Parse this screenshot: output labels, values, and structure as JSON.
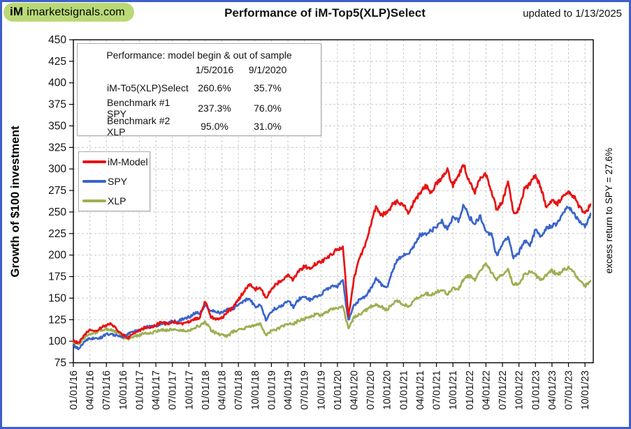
{
  "header": {
    "logo_im": "iM",
    "logo_domain": "imarketsignals.com",
    "title": "Performance of iM-Top5(XLP)Select",
    "updated": "updated to  1/13/2025"
  },
  "perf_table": {
    "title": "Performance:  model begin  &  out of sample",
    "columns": [
      "1/5/2016",
      "9/1/2020"
    ],
    "rows": [
      {
        "name": "iM-To5(XLP)Select",
        "begin": "260.6%",
        "oos": "35.7%"
      },
      {
        "name": "Benchmark #1 SPY",
        "begin": "237.3%",
        "oos": "76.0%"
      },
      {
        "name": "Benchmark #2 XLP",
        "begin": "95.0%",
        "oos": "31.0%"
      }
    ]
  },
  "y_axis_label": "Growth of $100 investment",
  "right_label": "excess return to SPY = 27.6%",
  "chart_data": {
    "type": "line",
    "title": "Performance of iM-Top5(XLP)Select",
    "ylabel": "Growth of $100 investment",
    "ylim": [
      75,
      450
    ],
    "yticks": [
      75,
      100,
      125,
      150,
      175,
      200,
      225,
      250,
      275,
      300,
      325,
      350,
      375,
      400,
      425,
      450
    ],
    "grid": "dashed",
    "legend_position": "upper-left box",
    "x_tick_labels": [
      "01/01/16",
      "04/01/16",
      "07/01/16",
      "10/01/16",
      "01/01/17",
      "04/01/17",
      "07/01/17",
      "10/01/17",
      "01/01/18",
      "04/01/18",
      "07/01/18",
      "10/01/18",
      "01/01/19",
      "04/01/19",
      "07/01/19",
      "10/01/19",
      "01/01/20",
      "04/01/20",
      "07/01/20",
      "10/01/20",
      "01/01/21",
      "04/01/21",
      "07/01/21",
      "10/01/21",
      "01/01/22",
      "04/01/22",
      "07/01/22",
      "10/01/22",
      "01/01/23",
      "04/01/23",
      "07/01/23",
      "10/01/23"
    ],
    "x_months": [
      "2016-01",
      "2016-02",
      "2016-03",
      "2016-04",
      "2016-05",
      "2016-06",
      "2016-07",
      "2016-08",
      "2016-09",
      "2016-10",
      "2016-11",
      "2016-12",
      "2017-01",
      "2017-02",
      "2017-03",
      "2017-04",
      "2017-05",
      "2017-06",
      "2017-07",
      "2017-08",
      "2017-09",
      "2017-10",
      "2017-11",
      "2017-12",
      "2018-01",
      "2018-02",
      "2018-03",
      "2018-04",
      "2018-05",
      "2018-06",
      "2018-07",
      "2018-08",
      "2018-09",
      "2018-10",
      "2018-11",
      "2018-12",
      "2019-01",
      "2019-02",
      "2019-03",
      "2019-04",
      "2019-05",
      "2019-06",
      "2019-07",
      "2019-08",
      "2019-09",
      "2019-10",
      "2019-11",
      "2019-12",
      "2020-01",
      "2020-02",
      "2020-03",
      "2020-04",
      "2020-05",
      "2020-06",
      "2020-07",
      "2020-08",
      "2020-09",
      "2020-10",
      "2020-11",
      "2020-12",
      "2021-01",
      "2021-02",
      "2021-03",
      "2021-04",
      "2021-05",
      "2021-06",
      "2021-07",
      "2021-08",
      "2021-09",
      "2021-10",
      "2021-11",
      "2021-12",
      "2022-01",
      "2022-02",
      "2022-03",
      "2022-04",
      "2022-05",
      "2022-06",
      "2022-07",
      "2022-08",
      "2022-09",
      "2022-10",
      "2022-11",
      "2022-12",
      "2023-01",
      "2023-02",
      "2023-03",
      "2023-04",
      "2023-05",
      "2023-06",
      "2023-07",
      "2023-08",
      "2023-09",
      "2023-10",
      "2023-11"
    ],
    "series": [
      {
        "name": "XLP",
        "color": "#9EAF52",
        "values": [
          98,
          97,
          104,
          108,
          110,
          113,
          114,
          113,
          110,
          104,
          103,
          105,
          107,
          110,
          109,
          111,
          113,
          113,
          114,
          113,
          112,
          112,
          116,
          118,
          122,
          113,
          109,
          107,
          106,
          111,
          113,
          115,
          117,
          118,
          121,
          107,
          112,
          114,
          117,
          120,
          120,
          124,
          126,
          128,
          131,
          130,
          134,
          137,
          138,
          140,
          114,
          128,
          131,
          135,
          140,
          143,
          140,
          136,
          144,
          147,
          143,
          140,
          148,
          152,
          156,
          153,
          157,
          160,
          155,
          162,
          161,
          172,
          176,
          172,
          181,
          190,
          180,
          172,
          178,
          183,
          165,
          167,
          178,
          181,
          177,
          171,
          176,
          182,
          177,
          182,
          186,
          180,
          170,
          164,
          170
        ]
      },
      {
        "name": "SPY",
        "color": "#3A64CB",
        "values": [
          95,
          91,
          100,
          103,
          104,
          104,
          108,
          108,
          107,
          105,
          109,
          111,
          113,
          117,
          117,
          118,
          120,
          121,
          123,
          123,
          126,
          128,
          132,
          133,
          141,
          136,
          133,
          134,
          137,
          138,
          143,
          147,
          150,
          140,
          143,
          125,
          135,
          139,
          142,
          148,
          140,
          149,
          151,
          148,
          151,
          154,
          160,
          164,
          164,
          170,
          124,
          141,
          148,
          151,
          160,
          172,
          166,
          162,
          182,
          196,
          200,
          203,
          211,
          223,
          225,
          228,
          233,
          239,
          230,
          243,
          240,
          259,
          244,
          237,
          246,
          226,
          224,
          198,
          212,
          222,
          197,
          203,
          217,
          212,
          229,
          222,
          231,
          234,
          236,
          249,
          256,
          247,
          238,
          233,
          248
        ]
      },
      {
        "name": "iM-Model",
        "color": "#E81212",
        "values": [
          100,
          98,
          107,
          113,
          112,
          115,
          119,
          120,
          113,
          107,
          104,
          109,
          112,
          116,
          115,
          119,
          122,
          120,
          122,
          121,
          120,
          122,
          125,
          128,
          147,
          128,
          126,
          127,
          134,
          139,
          148,
          158,
          166,
          160,
          163,
          150,
          161,
          167,
          171,
          177,
          171,
          181,
          187,
          184,
          190,
          192,
          196,
          201,
          207,
          210,
          128,
          172,
          196,
          210,
          235,
          255,
          246,
          250,
          258,
          263,
          258,
          248,
          263,
          272,
          281,
          273,
          283,
          290,
          298,
          281,
          293,
          304,
          285,
          272,
          290,
          293,
          275,
          252,
          262,
          285,
          248,
          253,
          276,
          283,
          292,
          278,
          255,
          262,
          260,
          268,
          274,
          268,
          256,
          247,
          259
        ]
      }
    ]
  }
}
